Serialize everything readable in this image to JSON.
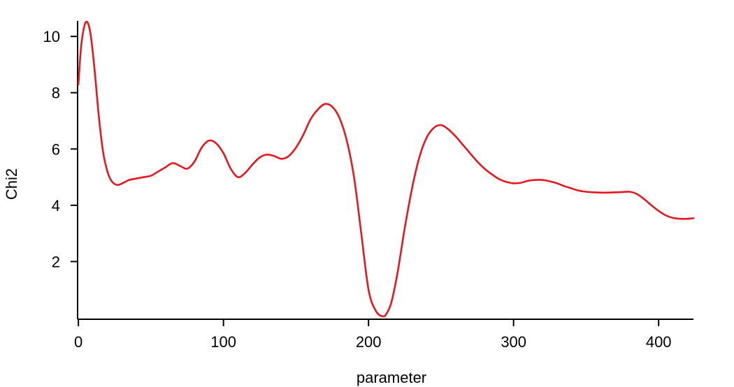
{
  "chart_data": {
    "type": "line",
    "title": "",
    "xlabel": "parameter",
    "ylabel": "Chi2",
    "xlim": [
      -2,
      424
    ],
    "ylim": [
      -0.05,
      10.55
    ],
    "x_ticks": [
      0,
      100,
      200,
      300,
      400
    ],
    "y_ticks": [
      2,
      4,
      6,
      8,
      10
    ],
    "x_tick_labels": [
      "0",
      "100",
      "200",
      "300",
      "400"
    ],
    "y_tick_labels": [
      "2",
      "4",
      "6",
      "8",
      "10"
    ],
    "grid": false,
    "line_color": "#e8161e",
    "series": [
      {
        "x": [
          0,
          2,
          5,
          8,
          11,
          14,
          17,
          20,
          23,
          27,
          31,
          35,
          40,
          45,
          50,
          55,
          60,
          65,
          70,
          75,
          80,
          85,
          90,
          95,
          100,
          105,
          110,
          115,
          120,
          125,
          130,
          135,
          140,
          145,
          150,
          155,
          160,
          165,
          170,
          175,
          180,
          185,
          190,
          195,
          200,
          205,
          210,
          213,
          216,
          220,
          225,
          230,
          235,
          240,
          245,
          250,
          255,
          260,
          265,
          270,
          275,
          280,
          285,
          290,
          295,
          300,
          305,
          310,
          315,
          320,
          325,
          330,
          335,
          340,
          345,
          350,
          355,
          360,
          365,
          370,
          375,
          380,
          385,
          390,
          395,
          400,
          405,
          410,
          415,
          420,
          424
        ],
        "values": [
          8.3,
          9.7,
          10.5,
          10.2,
          8.9,
          7.2,
          5.9,
          5.2,
          4.85,
          4.72,
          4.8,
          4.9,
          4.95,
          5.0,
          5.05,
          5.2,
          5.35,
          5.5,
          5.4,
          5.3,
          5.55,
          6.05,
          6.3,
          6.2,
          5.85,
          5.3,
          5.0,
          5.15,
          5.45,
          5.7,
          5.8,
          5.75,
          5.65,
          5.75,
          6.05,
          6.5,
          7.05,
          7.4,
          7.6,
          7.5,
          7.1,
          6.3,
          5.0,
          3.0,
          1.0,
          0.25,
          0.05,
          0.2,
          0.6,
          1.6,
          3.2,
          4.6,
          5.7,
          6.4,
          6.75,
          6.85,
          6.7,
          6.45,
          6.15,
          5.85,
          5.55,
          5.3,
          5.1,
          4.93,
          4.83,
          4.78,
          4.8,
          4.87,
          4.9,
          4.9,
          4.85,
          4.78,
          4.68,
          4.6,
          4.52,
          4.48,
          4.46,
          4.45,
          4.45,
          4.46,
          4.47,
          4.48,
          4.4,
          4.22,
          4.0,
          3.8,
          3.64,
          3.55,
          3.52,
          3.52,
          3.54
        ]
      }
    ]
  }
}
